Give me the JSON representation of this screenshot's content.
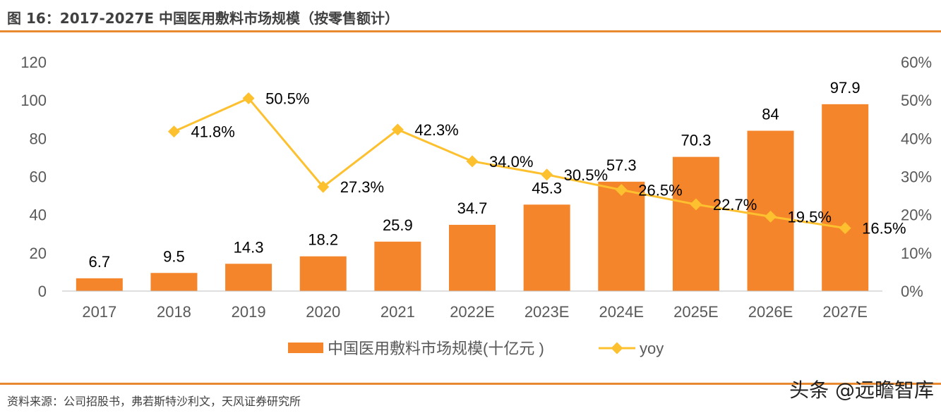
{
  "title": "图 16：2017-2027E 中国医用敷料市场规模（按零售额计）",
  "source": "资料来源：公司招股书，弗若斯特沙利文，天风证券研究所",
  "watermark": "头条 @远瞻智库",
  "colors": {
    "bar": "#F5852B",
    "line": "#FDC02F",
    "rule": "#E8892F"
  },
  "chart_data": {
    "type": "bar+line",
    "categories": [
      "2017",
      "2018",
      "2019",
      "2020",
      "2021",
      "2022E",
      "2023E",
      "2024E",
      "2025E",
      "2026E",
      "2027E"
    ],
    "series": [
      {
        "name": "中国医用敷料市场规模(十亿元 )",
        "type": "bar",
        "axis": "left",
        "values": [
          6.7,
          9.5,
          14.3,
          18.2,
          25.9,
          34.7,
          45.3,
          57.3,
          70.3,
          84,
          97.9
        ],
        "labels": [
          "6.7",
          "9.5",
          "14.3",
          "18.2",
          "25.9",
          "34.7",
          "45.3",
          "57.3",
          "70.3",
          "84",
          "97.9"
        ]
      },
      {
        "name": "yoy",
        "type": "line",
        "axis": "right",
        "values": [
          null,
          41.8,
          50.5,
          27.3,
          42.3,
          34.0,
          30.5,
          26.5,
          22.7,
          19.5,
          16.5
        ],
        "labels": [
          "",
          "41.8%",
          "50.5%",
          "27.3%",
          "42.3%",
          "34.0%",
          "30.5%",
          "26.5%",
          "22.7%",
          "19.5%",
          "16.5%"
        ]
      }
    ],
    "left_axis": {
      "range": [
        0,
        120
      ],
      "ticks": [
        "0",
        "20",
        "40",
        "60",
        "80",
        "100",
        "120"
      ]
    },
    "right_axis": {
      "range": [
        0,
        60
      ],
      "ticks": [
        "0%",
        "10%",
        "20%",
        "30%",
        "40%",
        "50%",
        "60%"
      ]
    },
    "grid": false,
    "legend": "bottom"
  }
}
